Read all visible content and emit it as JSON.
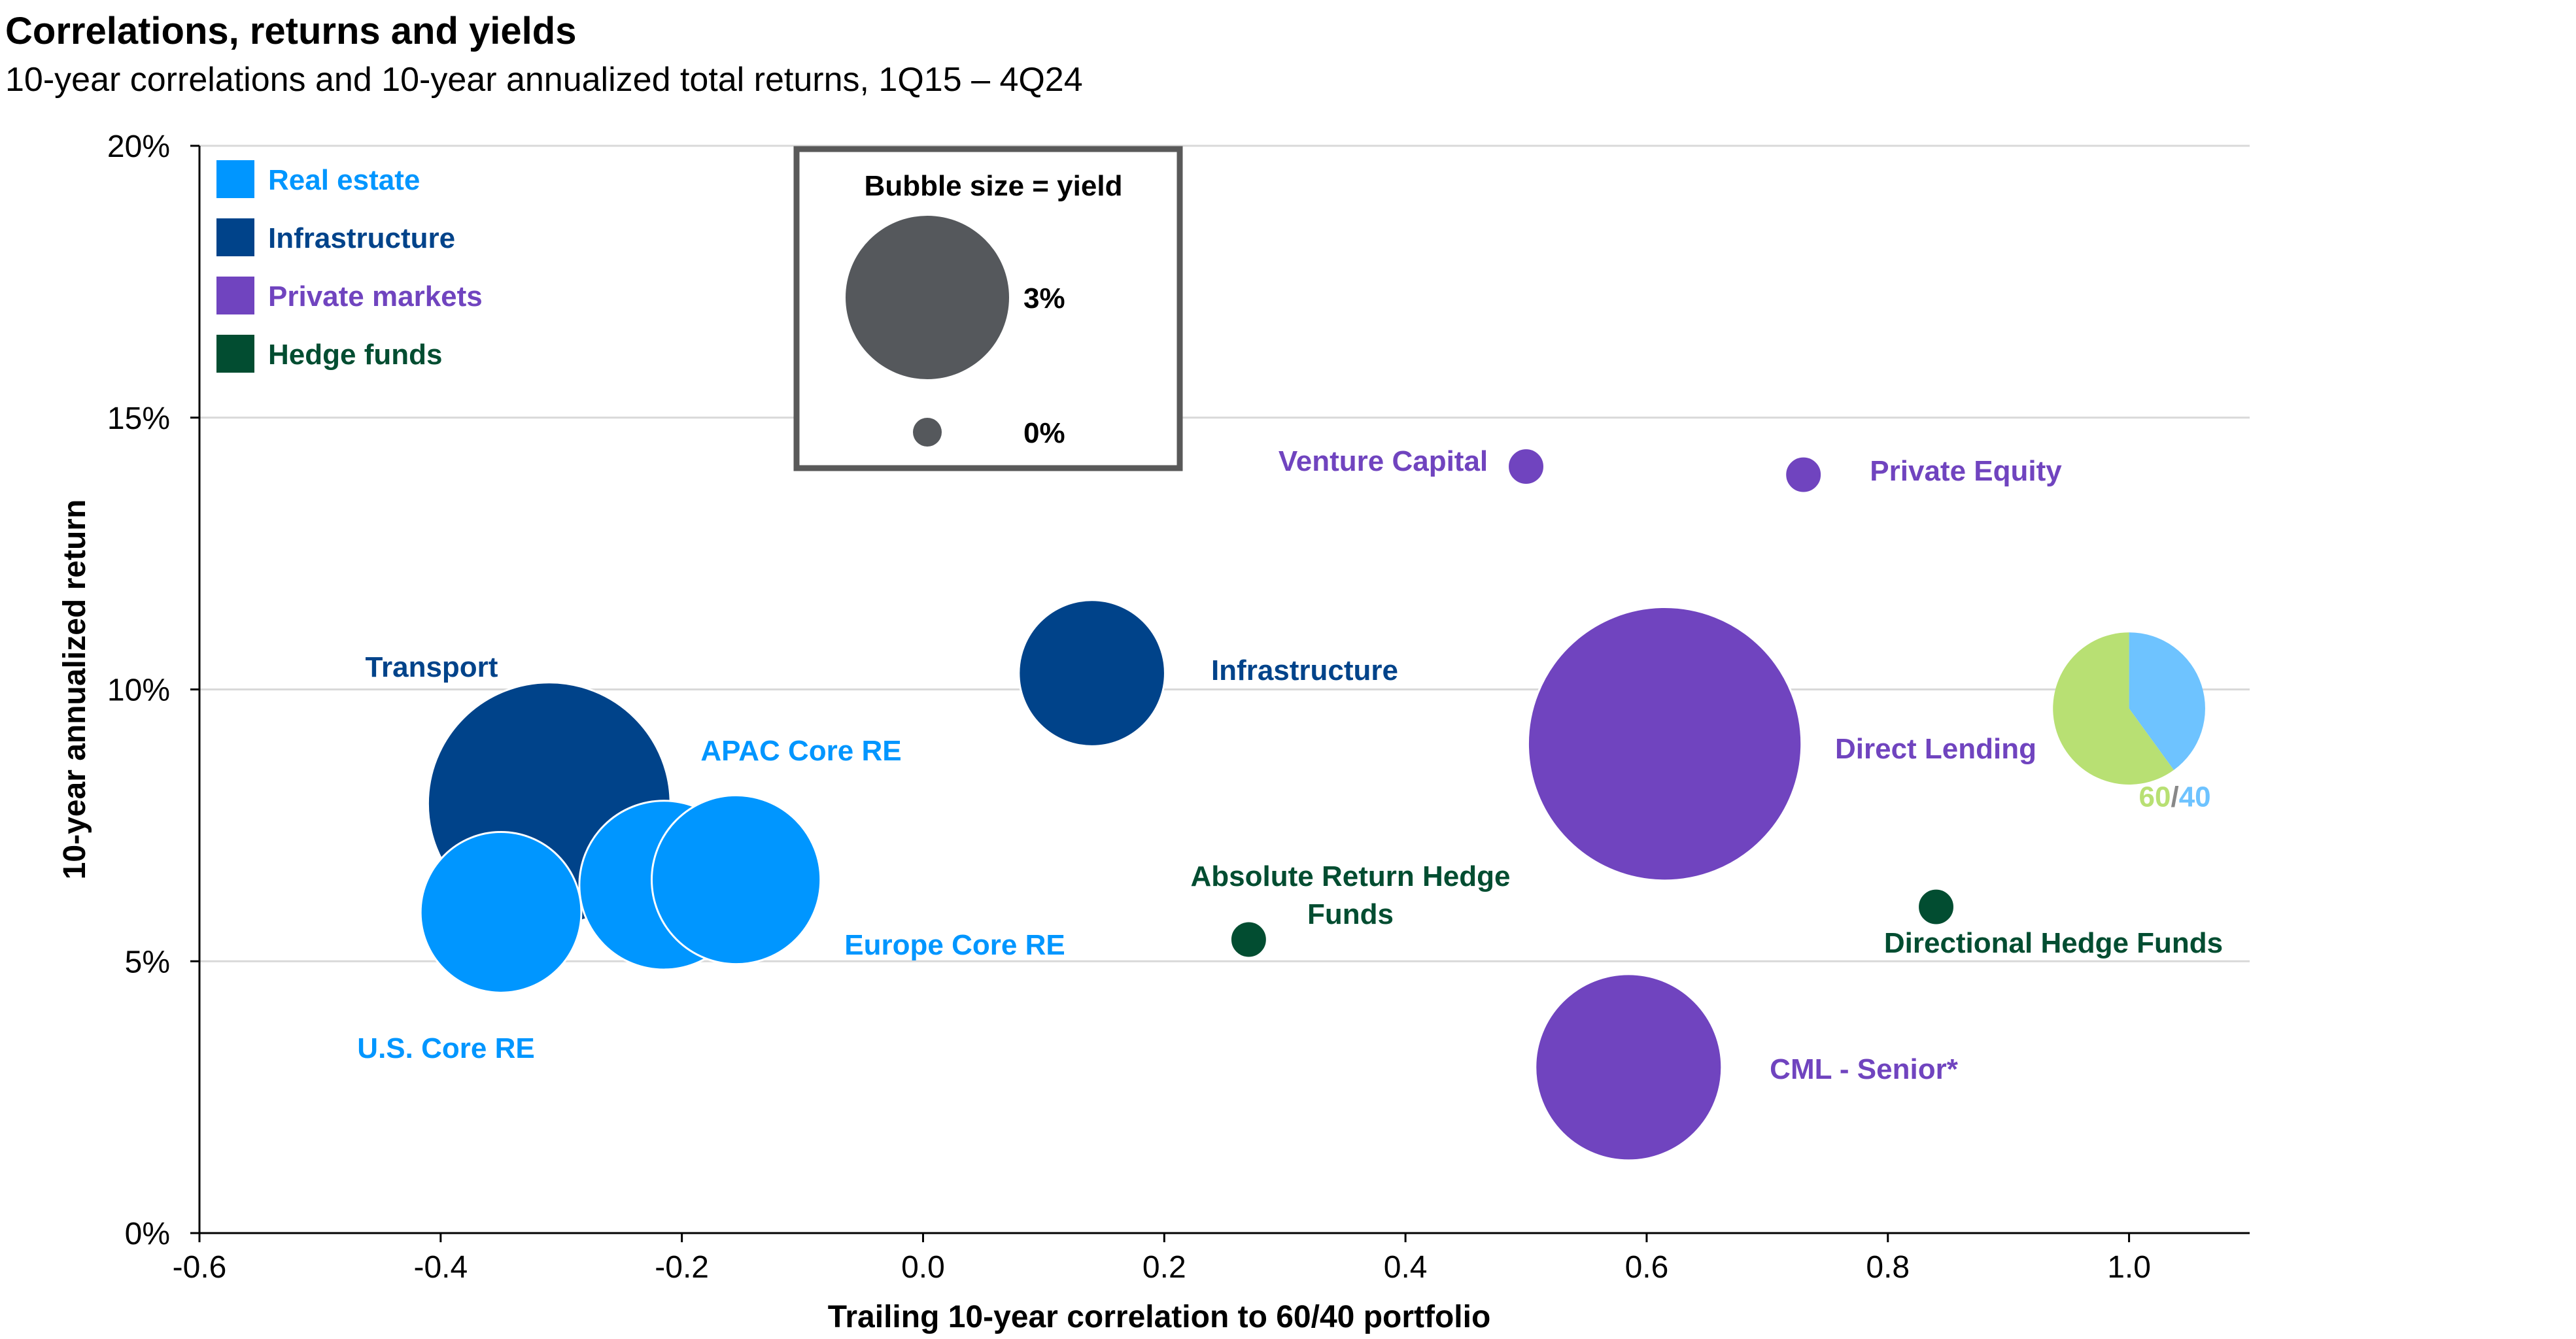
{
  "chart_data": {
    "type": "scatter",
    "title": "Correlations, returns and yields",
    "subtitle": "10-year correlations and 10-year annualized total returns, 1Q15 – 4Q24",
    "xlabel": "Trailing 10-year correlation to 60/40 portfolio",
    "ylabel": "10-year annualized return",
    "xlim": [
      -0.6,
      1.1
    ],
    "ylim": [
      0,
      20
    ],
    "x_ticks": [
      "-0.6",
      "-0.4",
      "-0.2",
      "0.0",
      "0.2",
      "0.4",
      "0.6",
      "0.8",
      "1.0"
    ],
    "y_ticks": [
      "0%",
      "5%",
      "10%",
      "15%",
      "20%"
    ],
    "grid": "horizontal",
    "legend": [
      {
        "label": "Real estate",
        "color": "#0096ff"
      },
      {
        "label": "Infrastructure",
        "color": "#00438a"
      },
      {
        "label": "Private markets",
        "color": "#7044bf"
      },
      {
        "label": "Hedge funds",
        "color": "#024d31"
      }
    ],
    "size_legend": {
      "title": "Bubble size = yield",
      "entries": [
        {
          "label": "3%",
          "yield": 3
        },
        {
          "label": "0%",
          "yield": 0
        }
      ]
    },
    "points": [
      {
        "label": "Transport",
        "x": -0.31,
        "y": 7.9,
        "yield": 6.6,
        "category": "Infrastructure"
      },
      {
        "label": "U.S. Core RE",
        "x": -0.35,
        "y": 5.9,
        "yield": 2.9,
        "category": "Real estate"
      },
      {
        "label": "APAC Core RE",
        "x": -0.215,
        "y": 6.4,
        "yield": 3.2,
        "category": "Real estate"
      },
      {
        "label": "Europe Core RE",
        "x": -0.155,
        "y": 6.5,
        "yield": 3.2,
        "category": "Real estate"
      },
      {
        "label": "Infrastructure",
        "x": 0.14,
        "y": 10.3,
        "yield": 2.4,
        "category": "Infrastructure"
      },
      {
        "label": "Absolute Return Hedge Funds",
        "x": 0.27,
        "y": 5.4,
        "yield": 0.15,
        "category": "Hedge funds"
      },
      {
        "label": "Venture Capital",
        "x": 0.5,
        "y": 14.1,
        "yield": 0.15,
        "category": "Private markets"
      },
      {
        "label": "Private Equity",
        "x": 0.73,
        "y": 13.95,
        "yield": 0.15,
        "category": "Private markets"
      },
      {
        "label": "Direct Lending",
        "x": 0.615,
        "y": 9.0,
        "yield": 8.4,
        "category": "Private markets"
      },
      {
        "label": "CML - Senior*",
        "x": 0.585,
        "y": 3.05,
        "yield": 3.9,
        "category": "Private markets"
      },
      {
        "label": "Directional Hedge Funds",
        "x": 0.84,
        "y": 6.0,
        "yield": 0.15,
        "category": "Hedge funds"
      }
    ],
    "portfolio_60_40": {
      "label_left": "60",
      "label_sep": "/",
      "label_right": "40",
      "x": 1.0,
      "y": 9.65,
      "yield": 2.6,
      "split": [
        60,
        40
      ],
      "colors": [
        "#b8e073",
        "#6ec3ff"
      ]
    }
  }
}
